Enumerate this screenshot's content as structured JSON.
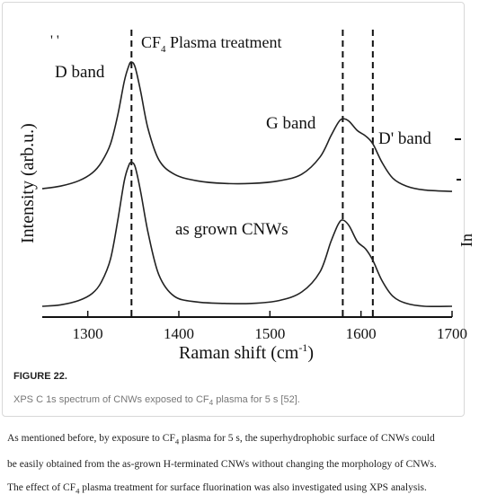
{
  "figure": {
    "label": "FIGURE 22.",
    "caption_pre": "XPS C 1s spectrum of CNWs exposed to CF",
    "caption_sub": "4",
    "caption_post": " plasma for 5 s [52]."
  },
  "chart_data": {
    "type": "line",
    "xlabel": "Raman shift (cm",
    "xlabel_sup": "-1",
    "xlabel_close": ")",
    "ylabel": "Intensity (arb.u.)",
    "xlim": [
      1250,
      1700
    ],
    "xticks": [
      "1300",
      "1400",
      "1500",
      "1600",
      "1700"
    ],
    "xtick_values": [
      1300,
      1400,
      1500,
      1600,
      1700
    ],
    "vlines": [
      1348,
      1580,
      1613
    ],
    "annotations": {
      "title": "CF",
      "title_sub": "4",
      "title_post": " Plasma treatment",
      "d_band": "D band",
      "g_band": "G band",
      "dprime_band": "D' band",
      "as_grown": "as grown CNWs",
      "cut_right": "In"
    },
    "series": [
      {
        "x": [
          1250,
          1270,
          1290,
          1305,
          1315,
          1325,
          1333,
          1340,
          1345,
          1348,
          1352,
          1358,
          1366,
          1378,
          1395,
          1420,
          1450,
          1480,
          1510,
          1535,
          1555,
          1567,
          1575,
          1580,
          1587,
          1596,
          1605,
          1613,
          1623,
          1635,
          1650,
          1670,
          1700
        ],
        "y": [
          0.04,
          0.06,
          0.1,
          0.16,
          0.24,
          0.38,
          0.6,
          0.85,
          0.97,
          1.0,
          0.96,
          0.78,
          0.5,
          0.26,
          0.15,
          0.1,
          0.08,
          0.08,
          0.1,
          0.15,
          0.28,
          0.44,
          0.54,
          0.57,
          0.55,
          0.48,
          0.44,
          0.38,
          0.24,
          0.12,
          0.06,
          0.03,
          0.02
        ]
      },
      {
        "x": [
          1250,
          1270,
          1290,
          1305,
          1315,
          1325,
          1333,
          1340,
          1345,
          1348,
          1352,
          1358,
          1366,
          1378,
          1395,
          1420,
          1450,
          1480,
          1510,
          1535,
          1555,
          1567,
          1575,
          1580,
          1587,
          1596,
          1605,
          1613,
          1623,
          1635,
          1650,
          1670,
          1700
        ],
        "y": [
          0.0,
          0.01,
          0.04,
          0.09,
          0.17,
          0.33,
          0.6,
          0.87,
          0.98,
          1.0,
          0.97,
          0.8,
          0.52,
          0.22,
          0.07,
          0.03,
          0.02,
          0.02,
          0.04,
          0.1,
          0.24,
          0.45,
          0.57,
          0.6,
          0.56,
          0.45,
          0.4,
          0.32,
          0.18,
          0.07,
          0.02,
          0.0,
          0.0
        ]
      }
    ]
  },
  "body": {
    "line1": "As mentioned before, by exposure to CF",
    "line1_sub": "4",
    "line1_post": " plasma for 5 s, the superhydrophobic surface of CNWs could",
    "line2": "be easily obtained from the as-grown H-terminated CNWs without changing the morphology of CNWs.",
    "line3": "The effect of CF",
    "line3_sub": "4",
    "line3_post": " plasma treatment for surface fluorination was also investigated using XPS analysis."
  }
}
